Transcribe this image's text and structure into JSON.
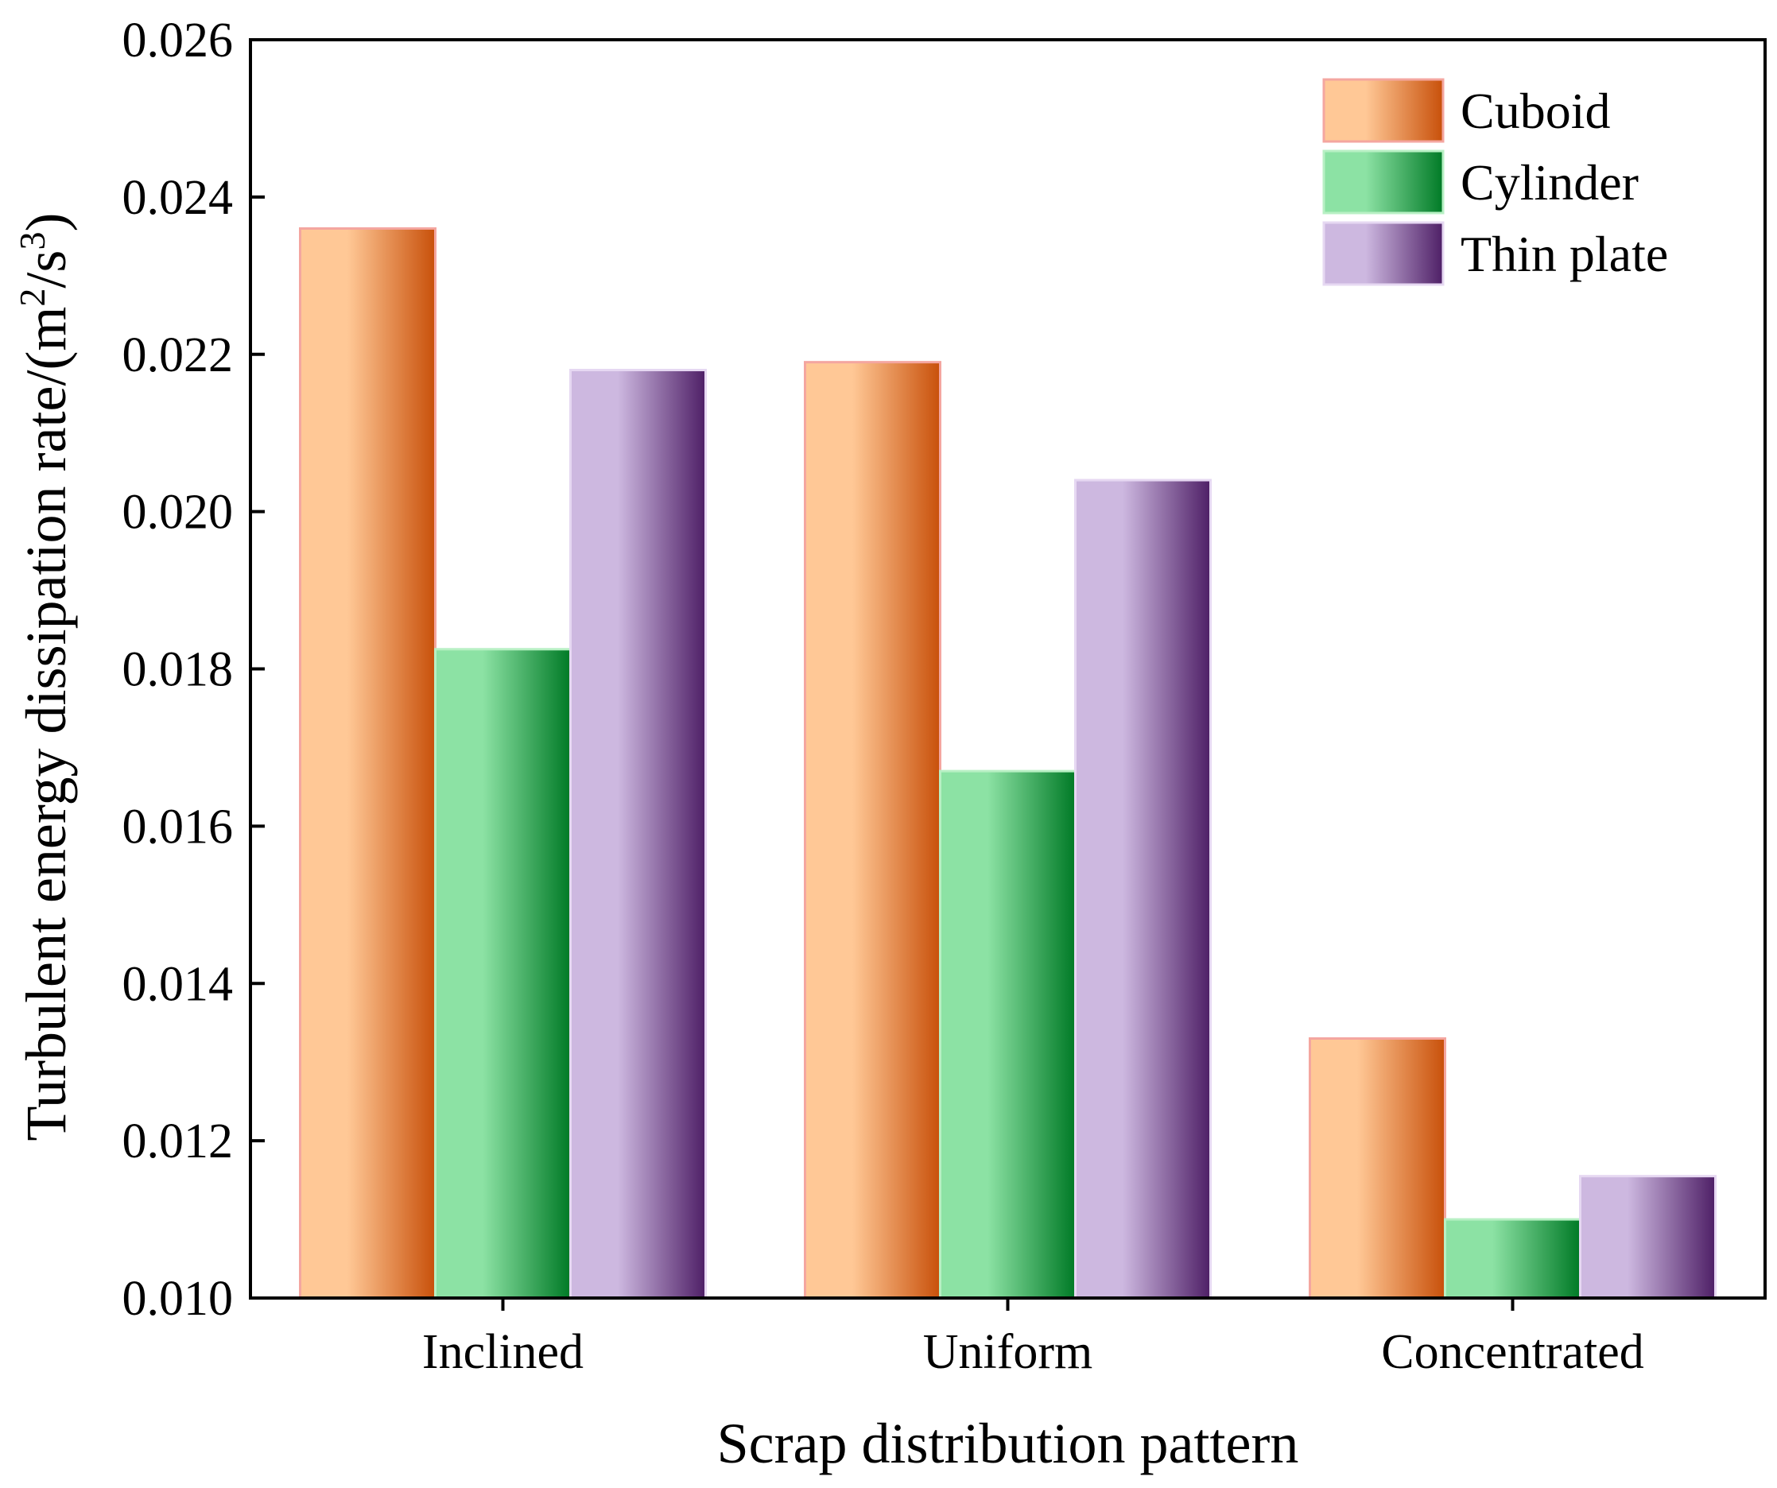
{
  "chart_data": {
    "type": "bar",
    "title": "",
    "xlabel": "Scrap distribution pattern",
    "ylabel": "Turbulent energy dissipation rate/(m",
    "ylabel_sup1": "2",
    "ylabel_mid": "/s",
    "ylabel_sup2": "3",
    "ylabel_end": ")",
    "categories": [
      "Inclined",
      "Uniform",
      "Concentrated"
    ],
    "series": [
      {
        "name": "Cuboid",
        "values": [
          0.0236,
          0.0219,
          0.0133
        ]
      },
      {
        "name": "Cylinder",
        "values": [
          0.01825,
          0.0167,
          0.011
        ]
      },
      {
        "name": "Thin plate",
        "values": [
          0.0218,
          0.0204,
          0.01155
        ]
      }
    ],
    "ylim": [
      0.01,
      0.026
    ],
    "yticks": [
      "0.010",
      "0.012",
      "0.014",
      "0.016",
      "0.018",
      "0.020",
      "0.022",
      "0.024",
      "0.026"
    ],
    "grid": false,
    "legend_position": "top-right",
    "colors": {
      "Cuboid": {
        "light": "#FFC896",
        "dark": "#C8500A",
        "edge": "#F4A6A0"
      },
      "Cylinder": {
        "light": "#8CE2A4",
        "dark": "#007A26",
        "edge": "#B8F0C4"
      },
      "Thin plate": {
        "light": "#CDB8E0",
        "dark": "#4E1F66",
        "edge": "#E6D8F2"
      }
    }
  }
}
